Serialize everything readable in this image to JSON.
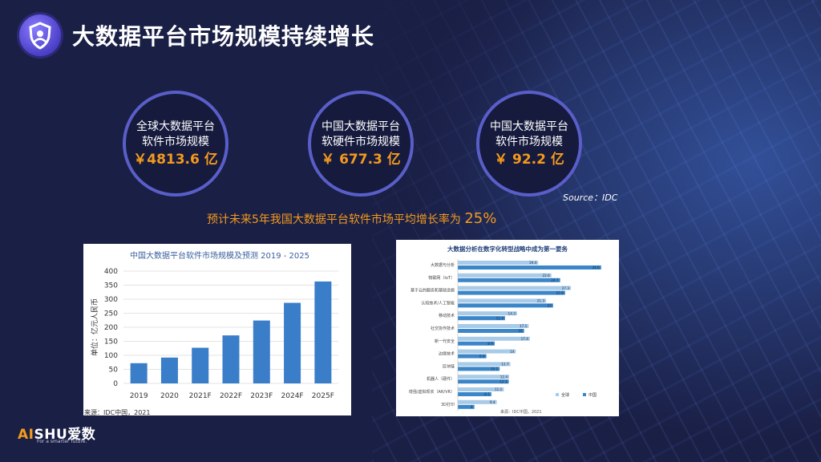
{
  "title": "大数据平台市场规模持续增长",
  "stats": [
    {
      "line1": "全球大数据平台",
      "line2": "软件市场规模",
      "value": "￥4813.6 亿"
    },
    {
      "line1": "中国大数据平台",
      "line2": "软硬件市场规模",
      "value": "￥ 677.3 亿"
    },
    {
      "line1": "中国大数据平台",
      "line2": "软件市场规模",
      "value": "￥ 92.2 亿"
    }
  ],
  "source": "Source：IDC",
  "growth": {
    "text": "预计未来5年我国大数据平台软件市场平均增长率为",
    "pct": "25%"
  },
  "brand": {
    "ai": "AI",
    "rest": "SHU爱数",
    "tagline": "For a smarter future."
  },
  "chart_data": [
    {
      "type": "bar",
      "title": "中国大数据平台软件市场规模及预测 2019 - 2025",
      "ylabel": "单位：亿元人民币",
      "categories": [
        "2019",
        "2020",
        "2021F",
        "2022F",
        "2023F",
        "2024F",
        "2025F"
      ],
      "values": [
        72,
        92,
        127,
        171,
        224,
        287,
        363
      ],
      "ylim": [
        0,
        400
      ],
      "yticks": [
        "0",
        "50",
        "100",
        "150",
        "200",
        "250",
        "300",
        "350",
        "400"
      ],
      "source": "来源：IDC中国，2021",
      "color": "#3a7dc9"
    },
    {
      "type": "bar",
      "title": "大数据分析在数字化转型战略中成为第一要务",
      "source": "来源：IDC中国，2021",
      "categories": [
        "大数据与分析",
        "物联网（IoT）",
        "基于云的服务和基础设施",
        "认知技术/人工智能",
        "移动技术",
        "社交协作技术",
        "新一代安全",
        "边缘技术",
        "区块链",
        "机器人（硬件）",
        "增强/虚拟现实（AR/VR）",
        "3D打印"
      ],
      "series": [
        {
          "name": "全球",
          "values": [
            19.4,
            22.6,
            27.3,
            21.3,
            14.3,
            17.1,
            17.4,
            14,
            12.7,
            12.4,
            11.1,
            9.4
          ],
          "color": "#a8cbe8"
        },
        {
          "name": "中国",
          "values": [
            34.6,
            24.7,
            25.9,
            23.0,
            11.4,
            16.0,
            8.9,
            6.9,
            10.1,
            12.3,
            8.1,
            4.0
          ],
          "color": "#3a86c8"
        }
      ],
      "xlim": [
        0,
        36
      ]
    }
  ]
}
